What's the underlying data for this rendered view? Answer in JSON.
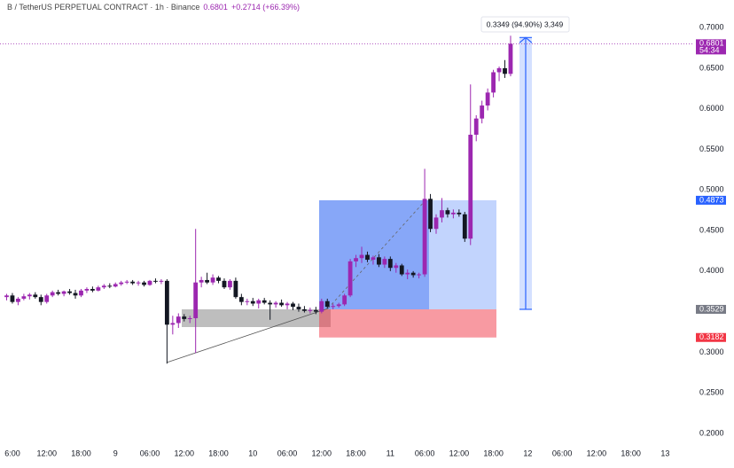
{
  "chart_data": {
    "type": "candlestick",
    "title": "B / TetherUS PERPETUAL CONTRACT · 1h · Binance",
    "last_price": 0.6801,
    "change": "+0.2714 (+66.39%)",
    "up_color": "#9c27b0",
    "down_color": "#131722",
    "categories": [
      null,
      "6:00",
      null,
      null,
      null,
      null,
      null,
      "12:00",
      null,
      null,
      null,
      null,
      null,
      "18:00",
      null,
      null,
      null,
      null,
      null,
      "9",
      null,
      null,
      null,
      null,
      null,
      "06:00",
      null,
      null,
      null,
      null,
      null,
      "12:00",
      null,
      null,
      null,
      null,
      null,
      "18:00",
      null,
      null,
      null,
      null,
      null,
      "10",
      null,
      null,
      null,
      null,
      null,
      "06:00",
      null,
      null,
      null,
      null,
      null,
      "12:00",
      null,
      null,
      null,
      null,
      null,
      "18:00",
      null,
      null,
      null,
      null,
      null,
      "11",
      null,
      null,
      null,
      null,
      null,
      "06:00",
      null,
      null,
      null,
      null,
      null,
      "12:00",
      null,
      null,
      null,
      null,
      null,
      "18:00",
      null,
      null,
      null,
      null,
      null,
      "12",
      null,
      null,
      null,
      null,
      null,
      "06:00",
      null,
      null,
      null,
      null,
      null,
      "12:00",
      null,
      null,
      null,
      null,
      null,
      "18:00",
      null,
      null,
      null,
      null,
      null,
      "13",
      null,
      null,
      null,
      null
    ],
    "open": [
      0.368,
      0.37,
      0.362,
      0.366,
      0.369,
      0.371,
      0.368,
      0.362,
      0.37,
      0.374,
      0.372,
      0.375,
      0.373,
      0.37,
      0.376,
      0.378,
      0.376,
      0.38,
      0.382,
      0.381,
      0.384,
      0.386,
      0.387,
      0.385,
      0.386,
      0.383,
      0.388,
      0.387,
      0.388,
      0.334,
      0.336,
      0.344,
      0.341,
      0.342,
      0.386,
      0.389,
      0.386,
      0.392,
      0.388,
      0.38,
      0.388,
      0.368,
      0.362,
      0.363,
      0.36,
      0.364,
      0.361,
      0.359,
      0.361,
      0.358,
      0.36,
      0.356,
      0.353,
      0.351,
      0.352,
      0.35,
      0.363,
      0.356,
      0.357,
      0.359,
      0.37,
      0.412,
      0.416,
      0.42,
      0.414,
      0.417,
      0.408,
      0.415,
      0.404,
      0.407,
      0.396,
      0.398,
      0.395,
      0.396,
      0.489,
      0.452,
      0.466,
      0.475,
      0.47,
      0.472,
      0.47,
      0.44,
      0.568,
      0.588,
      0.604,
      0.62,
      0.645,
      0.65,
      0.643,
      null,
      null,
      null,
      null,
      null,
      null,
      null,
      null,
      null,
      null,
      null,
      null,
      null,
      null,
      null,
      null,
      null,
      null,
      null,
      null,
      null,
      null,
      null,
      null,
      null,
      null,
      null,
      null,
      null,
      null,
      null
    ],
    "high": [
      0.372,
      0.373,
      0.368,
      0.372,
      0.373,
      0.374,
      0.371,
      0.372,
      0.376,
      0.377,
      0.376,
      0.378,
      0.377,
      0.378,
      0.38,
      0.381,
      0.382,
      0.384,
      0.385,
      0.386,
      0.388,
      0.389,
      0.389,
      0.388,
      0.388,
      0.389,
      0.391,
      0.39,
      0.39,
      0.345,
      0.348,
      0.347,
      0.345,
      0.452,
      0.393,
      0.398,
      0.396,
      0.394,
      0.391,
      0.39,
      0.392,
      0.372,
      0.366,
      0.367,
      0.366,
      0.367,
      0.364,
      0.363,
      0.365,
      0.362,
      0.362,
      0.36,
      0.357,
      0.355,
      0.356,
      0.366,
      0.366,
      0.36,
      0.361,
      0.372,
      0.415,
      0.42,
      0.43,
      0.424,
      0.419,
      0.421,
      0.418,
      0.418,
      0.41,
      0.409,
      0.402,
      0.4,
      0.398,
      0.526,
      0.495,
      0.47,
      0.49,
      0.478,
      0.476,
      0.476,
      0.473,
      0.63,
      0.592,
      0.61,
      0.625,
      0.648,
      0.652,
      0.66,
      0.69,
      null,
      null,
      null,
      null,
      null,
      null,
      null,
      null,
      null,
      null,
      null,
      null,
      null,
      null,
      null,
      null,
      null,
      null,
      null,
      null,
      null,
      null,
      null,
      null,
      null,
      null,
      null,
      null,
      null,
      null,
      null
    ],
    "low": [
      0.364,
      0.36,
      0.358,
      0.364,
      0.365,
      0.366,
      0.358,
      0.36,
      0.368,
      0.37,
      0.369,
      0.371,
      0.366,
      0.368,
      0.373,
      0.374,
      0.375,
      0.378,
      0.379,
      0.38,
      0.382,
      0.384,
      0.383,
      0.382,
      0.381,
      0.382,
      0.385,
      0.384,
      0.286,
      0.322,
      0.33,
      0.338,
      0.336,
      0.299,
      0.38,
      0.384,
      0.383,
      0.385,
      0.378,
      0.377,
      0.366,
      0.358,
      0.358,
      0.357,
      0.354,
      0.359,
      0.34,
      0.355,
      0.356,
      0.353,
      0.352,
      0.35,
      0.349,
      0.348,
      0.347,
      0.348,
      0.354,
      0.353,
      0.355,
      0.357,
      0.368,
      0.405,
      0.41,
      0.411,
      0.408,
      0.405,
      0.404,
      0.4,
      0.398,
      0.394,
      0.39,
      0.392,
      0.391,
      0.393,
      0.448,
      0.446,
      0.46,
      0.466,
      0.465,
      0.467,
      0.436,
      0.432,
      0.56,
      0.582,
      0.598,
      0.614,
      0.634,
      0.638,
      0.64,
      null,
      null,
      null,
      null,
      null,
      null,
      null,
      null,
      null,
      null,
      null,
      null,
      null,
      null,
      null,
      null,
      null,
      null,
      null,
      null,
      null,
      null,
      null,
      null,
      null,
      null,
      null,
      null,
      null,
      null,
      null
    ],
    "close": [
      0.37,
      0.362,
      0.366,
      0.369,
      0.371,
      0.368,
      0.362,
      0.37,
      0.374,
      0.372,
      0.375,
      0.373,
      0.37,
      0.376,
      0.378,
      0.376,
      0.38,
      0.382,
      0.381,
      0.384,
      0.386,
      0.387,
      0.385,
      0.386,
      0.383,
      0.388,
      0.387,
      0.388,
      0.334,
      0.336,
      0.344,
      0.341,
      0.342,
      0.386,
      0.389,
      0.386,
      0.392,
      0.388,
      0.38,
      0.388,
      0.368,
      0.362,
      0.363,
      0.36,
      0.364,
      0.361,
      0.359,
      0.361,
      0.358,
      0.36,
      0.356,
      0.353,
      0.351,
      0.352,
      0.35,
      0.363,
      0.356,
      0.357,
      0.359,
      0.37,
      0.412,
      0.416,
      0.42,
      0.414,
      0.417,
      0.408,
      0.415,
      0.404,
      0.407,
      0.396,
      0.398,
      0.395,
      0.396,
      0.489,
      0.452,
      0.466,
      0.475,
      0.47,
      0.472,
      0.47,
      0.44,
      0.568,
      0.588,
      0.604,
      0.62,
      0.645,
      0.65,
      0.643,
      0.6801,
      null,
      null,
      null,
      null,
      null,
      null,
      null,
      null,
      null,
      null,
      null,
      null,
      null,
      null,
      null,
      null,
      null,
      null,
      null,
      null,
      null,
      null,
      null,
      null,
      null,
      null,
      null,
      null,
      null,
      null,
      null
    ],
    "ylim": [
      0.188,
      0.734
    ],
    "yticks": [
      {
        "value": 0.7,
        "label": "0.7000"
      },
      {
        "value": 0.65,
        "label": "0.6500"
      },
      {
        "value": 0.6,
        "label": "0.6000"
      },
      {
        "value": 0.55,
        "label": "0.5500"
      },
      {
        "value": 0.5,
        "label": "0.5000"
      },
      {
        "value": 0.45,
        "label": "0.4500"
      },
      {
        "value": 0.4,
        "label": "0.4000"
      },
      {
        "value": 0.35,
        "label": "0.3500"
      },
      {
        "value": 0.3,
        "label": "0.3000"
      },
      {
        "value": 0.25,
        "label": "0.2500"
      },
      {
        "value": 0.2,
        "label": "0.2000"
      }
    ],
    "markers": [
      {
        "value": 0.6801,
        "color": "#9c27b0",
        "countdown": "54:34",
        "line": true
      },
      {
        "value": 0.4873,
        "color": "#2962ff"
      },
      {
        "value": 0.3529,
        "color": "#787b86"
      },
      {
        "value": 0.3182,
        "color": "#f23645"
      }
    ],
    "measure": {
      "label": "0.3349 (94.90%) 3,349",
      "to": 0.6878
    }
  }
}
